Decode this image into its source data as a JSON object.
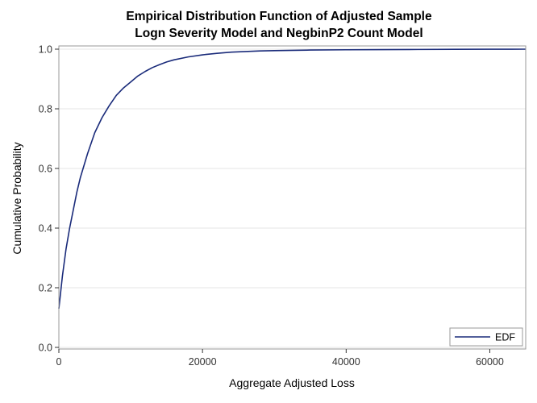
{
  "chart_data": {
    "type": "line",
    "title": [
      "Empirical Distribution Function of Adjusted Sample",
      "Logn Severity Model and NegbinP2 Count Model"
    ],
    "xlabel": "Aggregate Adjusted Loss",
    "ylabel": "Cumulative Probability",
    "xlim": [
      0,
      65000
    ],
    "ylim": [
      0,
      1.0
    ],
    "x_ticks": [
      0,
      20000,
      40000,
      60000
    ],
    "x_tick_labels": [
      "0",
      "20000",
      "40000",
      "60000"
    ],
    "y_ticks": [
      0.0,
      0.2,
      0.4,
      0.6,
      0.8,
      1.0
    ],
    "y_tick_labels": [
      "0.0",
      "0.2",
      "0.4",
      "0.6",
      "0.8",
      "1.0"
    ],
    "grid": "horizontal",
    "legend_position": "bottom-right",
    "colors": {
      "line": "#1a2b7a",
      "grid": "#e6e6e6",
      "frame": "#9a9a9a"
    },
    "series": [
      {
        "name": "EDF",
        "x": [
          0,
          500,
          1000,
          1500,
          2000,
          2500,
          3000,
          4000,
          5000,
          6000,
          7000,
          8000,
          9000,
          10000,
          11000,
          12000,
          13000,
          14000,
          15000,
          16000,
          18000,
          20000,
          22000,
          24000,
          26000,
          28000,
          30000,
          35000,
          40000,
          45000,
          50000,
          55000,
          60000,
          65000
        ],
        "y": [
          0.13,
          0.24,
          0.33,
          0.4,
          0.46,
          0.52,
          0.57,
          0.65,
          0.72,
          0.77,
          0.81,
          0.845,
          0.87,
          0.89,
          0.91,
          0.925,
          0.938,
          0.948,
          0.957,
          0.964,
          0.974,
          0.981,
          0.986,
          0.99,
          0.992,
          0.994,
          0.995,
          0.997,
          0.998,
          0.9985,
          0.999,
          0.9995,
          0.9998,
          1.0
        ]
      }
    ]
  }
}
